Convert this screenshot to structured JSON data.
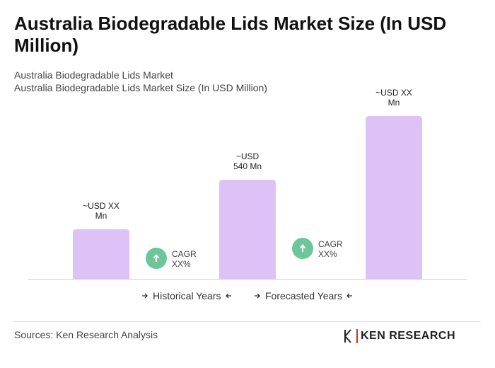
{
  "chart_data": {
    "type": "bar",
    "title": "Australia Biodegradable Lids Market Size (In USD Million)",
    "subtitles": [
      "Australia Biodegradable Lids Market",
      "Australia Biodegradable Lids Market Size (In USD Million)"
    ],
    "categories": [
      null,
      null,
      null
    ],
    "values": [
      270,
      540,
      887
    ],
    "value_labels": [
      "~USD XX Mn",
      "~USD 540 Mn",
      "~USD XX Mn"
    ],
    "color": "#dcc2f7",
    "annotations": [
      "CAGR XX%",
      "CAGR XX%"
    ],
    "annotation_color": "#6cc69a",
    "legend": [
      "Historical Years",
      "Forecasted Years"
    ],
    "source": "Sources: Ken Research Analysis",
    "logo": "KEN RESEARCH"
  }
}
